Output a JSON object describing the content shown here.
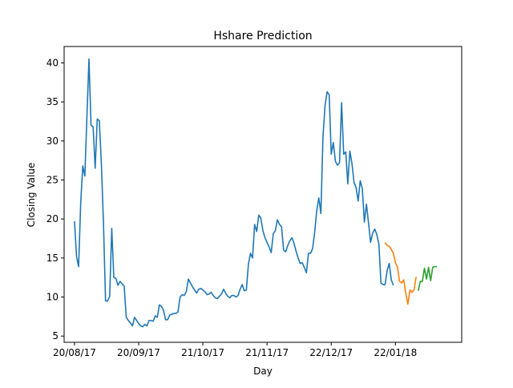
{
  "chart_data": {
    "type": "line",
    "title": "Hshare Prediction",
    "xlabel": "Day",
    "ylabel": "Closing Value",
    "x_tick_labels": [
      "20/08/17",
      "20/09/17",
      "21/10/17",
      "21/11/17",
      "22/12/17",
      "22/01/18"
    ],
    "y_ticks": [
      5,
      10,
      15,
      20,
      25,
      30,
      35,
      40
    ],
    "xlim_days": [
      -5,
      187
    ],
    "ylim": [
      4.2,
      42.1
    ],
    "grid": false,
    "legend": "none",
    "series": [
      {
        "color": "#1f77b4",
        "start_day": 0,
        "values": [
          19.7,
          15.2,
          13.9,
          22.0,
          26.8,
          25.5,
          33.0,
          40.5,
          32.0,
          31.8,
          26.5,
          32.8,
          32.6,
          27.0,
          19.5,
          9.5,
          9.5,
          10.1,
          18.8,
          12.5,
          12.4,
          11.5,
          12.0,
          11.7,
          11.4,
          7.4,
          7.0,
          6.7,
          6.3,
          7.4,
          7.0,
          6.6,
          6.3,
          6.2,
          6.5,
          6.3,
          7.0,
          7.0,
          6.9,
          7.6,
          7.4,
          9.0,
          8.8,
          8.3,
          7.1,
          7.1,
          7.7,
          7.8,
          7.9,
          7.9,
          8.1,
          10.0,
          10.3,
          10.2,
          10.7,
          12.3,
          11.8,
          11.3,
          10.9,
          10.5,
          11.0,
          11.1,
          10.9,
          10.7,
          10.3,
          10.4,
          10.6,
          10.2,
          9.9,
          9.8,
          10.1,
          10.4,
          11.0,
          10.5,
          10.1,
          9.9,
          10.2,
          10.2,
          10.0,
          10.2,
          11.0,
          11.6,
          10.8,
          10.9,
          14.2,
          15.6,
          15.0,
          19.3,
          18.4,
          20.5,
          20.1,
          18.5,
          17.6,
          17.0,
          16.4,
          15.7,
          18.1,
          18.5,
          19.9,
          19.3,
          19.0,
          16.0,
          15.8,
          16.6,
          17.2,
          17.6,
          16.9,
          15.9,
          15.0,
          14.3,
          14.4,
          13.8,
          13.1,
          15.6,
          15.6,
          16.2,
          18.3,
          21.1,
          22.7,
          20.7,
          30.5,
          34.5,
          36.3,
          35.9,
          28.3,
          29.8,
          27.4,
          26.9,
          27.2,
          34.9,
          28.3,
          28.6,
          24.5,
          28.7,
          27.1,
          24.7,
          24.0,
          22.3,
          24.9,
          23.9,
          19.6,
          21.9,
          19.5,
          17.0,
          18.2,
          18.7,
          18.0,
          16.8,
          11.8,
          11.6,
          11.6,
          13.4,
          14.3,
          12.2,
          11.5
        ]
      },
      {
        "color": "#ff7f0e",
        "start_day": 150,
        "values": [
          17.0,
          16.6,
          16.5,
          16.1,
          15.6,
          14.4,
          13.8,
          12.0,
          11.8,
          12.2,
          10.5,
          9.1,
          10.9,
          10.6,
          10.9,
          12.6
        ]
      },
      {
        "color": "#2ca02c",
        "start_day": 166,
        "values": [
          10.8,
          12.0,
          12.0,
          13.7,
          12.3,
          13.8,
          12.1,
          13.8,
          13.9,
          13.9
        ]
      }
    ]
  }
}
